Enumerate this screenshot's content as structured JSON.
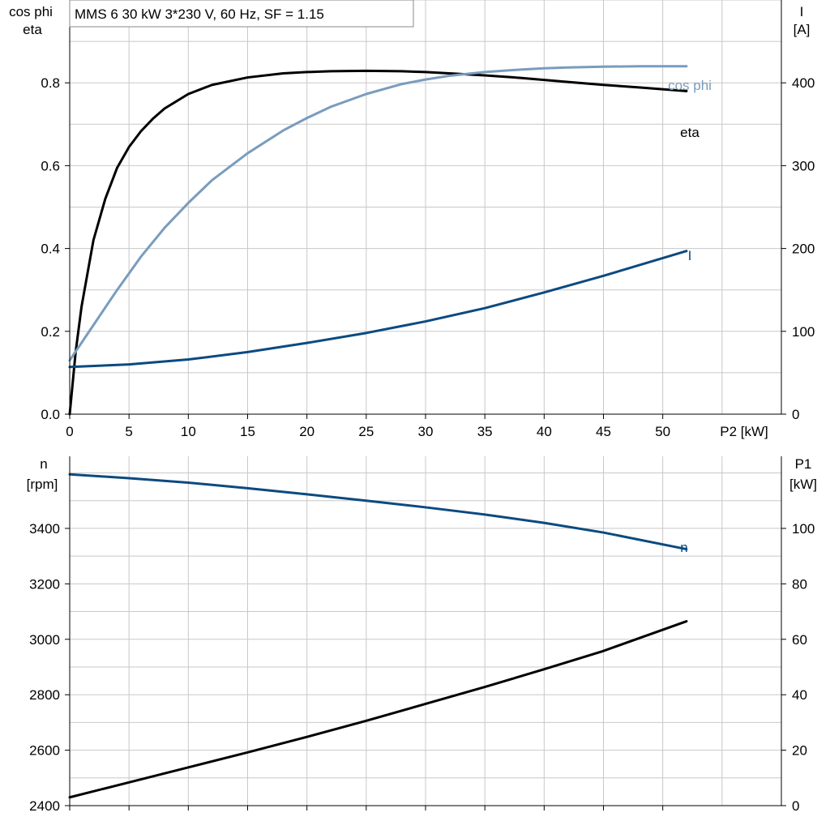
{
  "colors": {
    "eta": "#000000",
    "cos_phi": "#7a9cbd",
    "current": "#0b4a80",
    "speed": "#0b4a80",
    "p1": "#000000",
    "grid": "#c8c8c8",
    "axis": "#000000"
  },
  "chart_data": [
    {
      "type": "line",
      "title": "MMS 6   30 kW   3*230 V, 60 Hz, SF = 1.15",
      "xlabel": "P2 [kW]",
      "xlim": [
        0,
        60
      ],
      "x_ticks": [
        0,
        5,
        10,
        15,
        20,
        25,
        30,
        35,
        40,
        45,
        50
      ],
      "y_left": {
        "label_lines": [
          "cos phi",
          "eta"
        ],
        "lim": [
          0,
          1.0
        ],
        "ticks": [
          "0.0",
          "0.2",
          "0.4",
          "0.6",
          "0.8"
        ]
      },
      "y_right": {
        "label_lines": [
          "I",
          "[A]"
        ],
        "lim": [
          0,
          500
        ],
        "ticks": [
          "0",
          "100",
          "200",
          "300",
          "400"
        ]
      },
      "grid": true,
      "series": [
        {
          "name": "eta",
          "axis": "left",
          "x": [
            0,
            0.5,
            1,
            2,
            3,
            4,
            5,
            6,
            7,
            8,
            10,
            12,
            15,
            18,
            20,
            22,
            25,
            28,
            30,
            32,
            35,
            38,
            40,
            42,
            45,
            48,
            52
          ],
          "y": [
            0.0,
            0.15,
            0.26,
            0.42,
            0.52,
            0.595,
            0.645,
            0.683,
            0.713,
            0.738,
            0.773,
            0.795,
            0.813,
            0.823,
            0.826,
            0.828,
            0.829,
            0.828,
            0.826,
            0.823,
            0.818,
            0.812,
            0.807,
            0.802,
            0.795,
            0.789,
            0.78
          ]
        },
        {
          "name": "cos phi",
          "axis": "left",
          "x": [
            0,
            2,
            4,
            6,
            8,
            10,
            12,
            15,
            18,
            20,
            22,
            25,
            28,
            30,
            32,
            35,
            38,
            40,
            42,
            45,
            48,
            52
          ],
          "y": [
            0.13,
            0.215,
            0.3,
            0.38,
            0.45,
            0.51,
            0.565,
            0.63,
            0.685,
            0.715,
            0.742,
            0.773,
            0.797,
            0.808,
            0.817,
            0.826,
            0.832,
            0.835,
            0.837,
            0.839,
            0.84,
            0.84
          ]
        },
        {
          "name": "I",
          "axis": "right",
          "x": [
            0,
            5,
            10,
            15,
            20,
            25,
            30,
            35,
            40,
            45,
            52
          ],
          "y": [
            57,
            60,
            66,
            75,
            86,
            98,
            112,
            128,
            147,
            167,
            197
          ]
        }
      ]
    },
    {
      "type": "line",
      "x_ticks": [
        0,
        5,
        10,
        15,
        20,
        25,
        30,
        35,
        40,
        45,
        50
      ],
      "xlim": [
        0,
        60
      ],
      "y_left": {
        "label_lines": [
          "n",
          "[rpm]"
        ],
        "lim": [
          2400,
          3660
        ],
        "ticks": [
          "2400",
          "2600",
          "2800",
          "3000",
          "3200",
          "3400"
        ]
      },
      "y_right": {
        "label_lines": [
          "P1",
          "[kW]"
        ],
        "lim": [
          0,
          126
        ],
        "ticks": [
          "0",
          "20",
          "40",
          "60",
          "80",
          "100"
        ]
      },
      "grid": true,
      "series": [
        {
          "name": "n",
          "axis": "left",
          "x": [
            0,
            5,
            10,
            15,
            20,
            25,
            30,
            35,
            40,
            45,
            52
          ],
          "y": [
            3595,
            3581,
            3565,
            3545,
            3523,
            3500,
            3476,
            3450,
            3420,
            3385,
            3325
          ]
        },
        {
          "name": "",
          "axis": "right",
          "x": [
            0,
            5,
            10,
            15,
            20,
            25,
            30,
            35,
            40,
            45,
            52
          ],
          "y": [
            3,
            8.4,
            13.8,
            19.2,
            24.8,
            30.6,
            36.7,
            42.8,
            49.2,
            55.8,
            66.5
          ]
        }
      ]
    }
  ]
}
